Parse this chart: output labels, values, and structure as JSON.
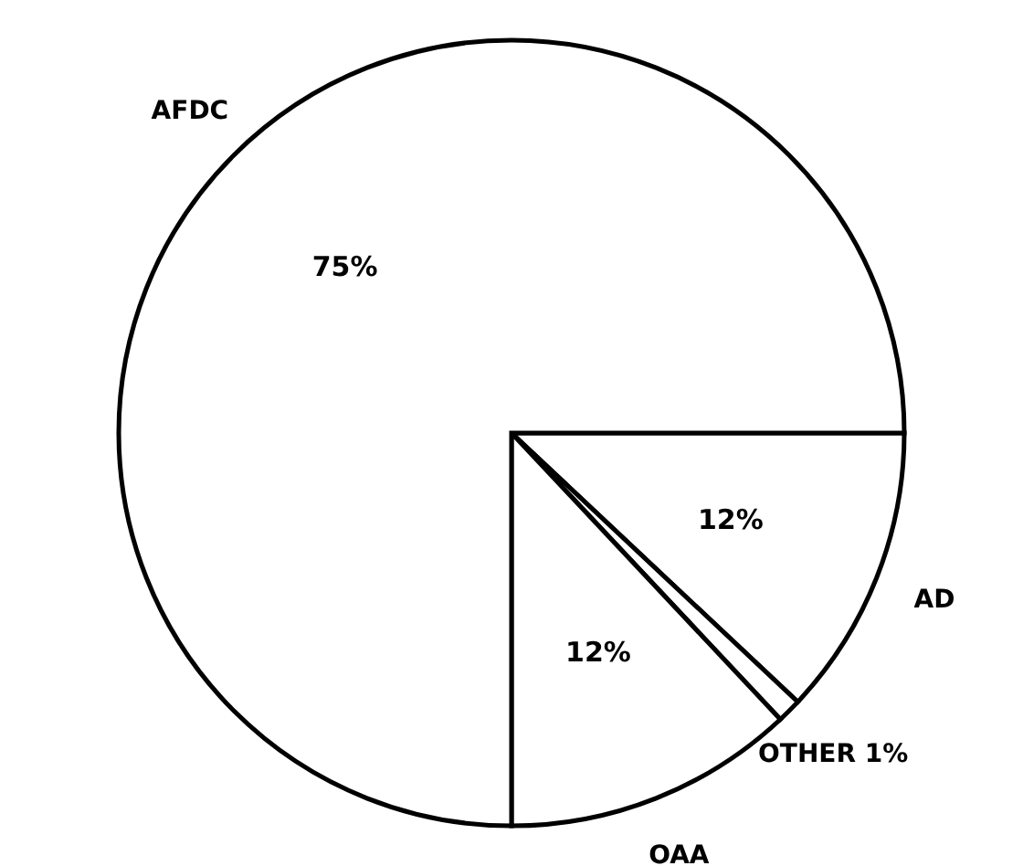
{
  "chart_data": {
    "type": "pie",
    "categories": [
      "AD",
      "OTHER",
      "OAA",
      "AFDC"
    ],
    "values": [
      12,
      1,
      12,
      75
    ],
    "value_labels": [
      "12%",
      "1%",
      "12%",
      "75%"
    ],
    "colors": [
      "#ffffff",
      "#ffffff",
      "#ffffff",
      "#ffffff"
    ]
  }
}
